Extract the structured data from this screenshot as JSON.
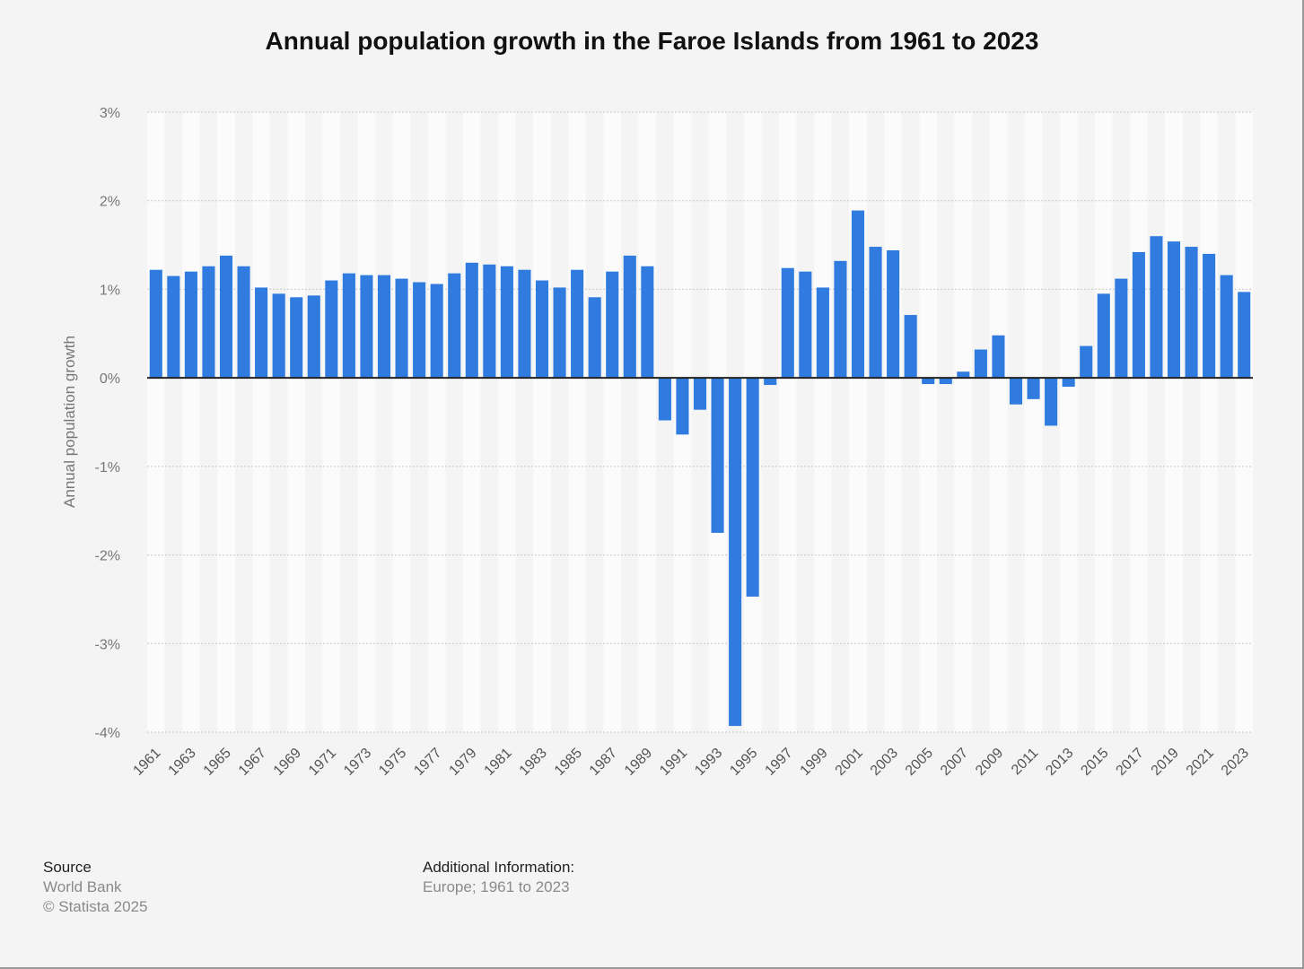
{
  "chart_data": {
    "type": "bar",
    "title": "Annual population growth in the Faroe Islands from 1961 to 2023",
    "ylabel": "Annual population growth",
    "xlabel": "",
    "ylim": [
      -4,
      3
    ],
    "ytick_values": [
      3,
      2,
      1,
      0,
      -1,
      -2,
      -3,
      -4
    ],
    "ytick_labels": [
      "3%",
      "2%",
      "1%",
      "0%",
      "-1%",
      "-2%",
      "-3%",
      "-4%"
    ],
    "grid": true,
    "legend": "none",
    "bar_color": "#2f7be0",
    "categories": [
      "1961",
      "1962",
      "1963",
      "1964",
      "1965",
      "1966",
      "1967",
      "1968",
      "1969",
      "1970",
      "1971",
      "1972",
      "1973",
      "1974",
      "1975",
      "1976",
      "1977",
      "1978",
      "1979",
      "1980",
      "1981",
      "1982",
      "1983",
      "1984",
      "1985",
      "1986",
      "1987",
      "1988",
      "1989",
      "1990",
      "1991",
      "1992",
      "1993",
      "1994",
      "1995",
      "1996",
      "1997",
      "1998",
      "1999",
      "2000",
      "2001",
      "2002",
      "2003",
      "2004",
      "2005",
      "2006",
      "2007",
      "2008",
      "2009",
      "2010",
      "2011",
      "2012",
      "2013",
      "2014",
      "2015",
      "2016",
      "2017",
      "2018",
      "2019",
      "2020",
      "2021",
      "2022",
      "2023"
    ],
    "xtick_labels": [
      "1961",
      "",
      "1963",
      "",
      "1965",
      "",
      "1967",
      "",
      "1969",
      "",
      "1971",
      "",
      "1973",
      "",
      "1975",
      "",
      "1977",
      "",
      "1979",
      "",
      "1981",
      "",
      "1983",
      "",
      "1985",
      "",
      "1987",
      "",
      "1989",
      "",
      "1991",
      "",
      "1993",
      "",
      "1995",
      "",
      "1997",
      "",
      "1999",
      "",
      "2001",
      "",
      "2003",
      "",
      "2005",
      "",
      "2007",
      "",
      "2009",
      "",
      "2011",
      "",
      "2013",
      "",
      "2015",
      "",
      "2017",
      "",
      "2019",
      "",
      "2021",
      "",
      "2023"
    ],
    "values": [
      1.22,
      1.15,
      1.2,
      1.26,
      1.38,
      1.26,
      1.02,
      0.95,
      0.91,
      0.93,
      1.1,
      1.18,
      1.16,
      1.16,
      1.12,
      1.08,
      1.06,
      1.18,
      1.3,
      1.28,
      1.26,
      1.22,
      1.1,
      1.02,
      1.22,
      0.91,
      1.2,
      1.38,
      1.26,
      -0.48,
      -0.64,
      -0.36,
      -1.75,
      -3.93,
      -2.47,
      -0.08,
      1.24,
      1.2,
      1.02,
      1.32,
      1.89,
      1.48,
      1.44,
      0.71,
      -0.07,
      -0.07,
      0.07,
      0.32,
      0.48,
      -0.3,
      -0.24,
      -0.54,
      -0.1,
      0.36,
      0.95,
      1.12,
      1.42,
      1.6,
      1.54,
      1.48,
      1.4,
      1.16,
      0.97
    ]
  },
  "footer": {
    "source_heading": "Source",
    "source_name": "World Bank",
    "copyright": "© Statista 2025",
    "additional_heading": "Additional Information:",
    "additional_text": "Europe; 1961 to 2023"
  }
}
